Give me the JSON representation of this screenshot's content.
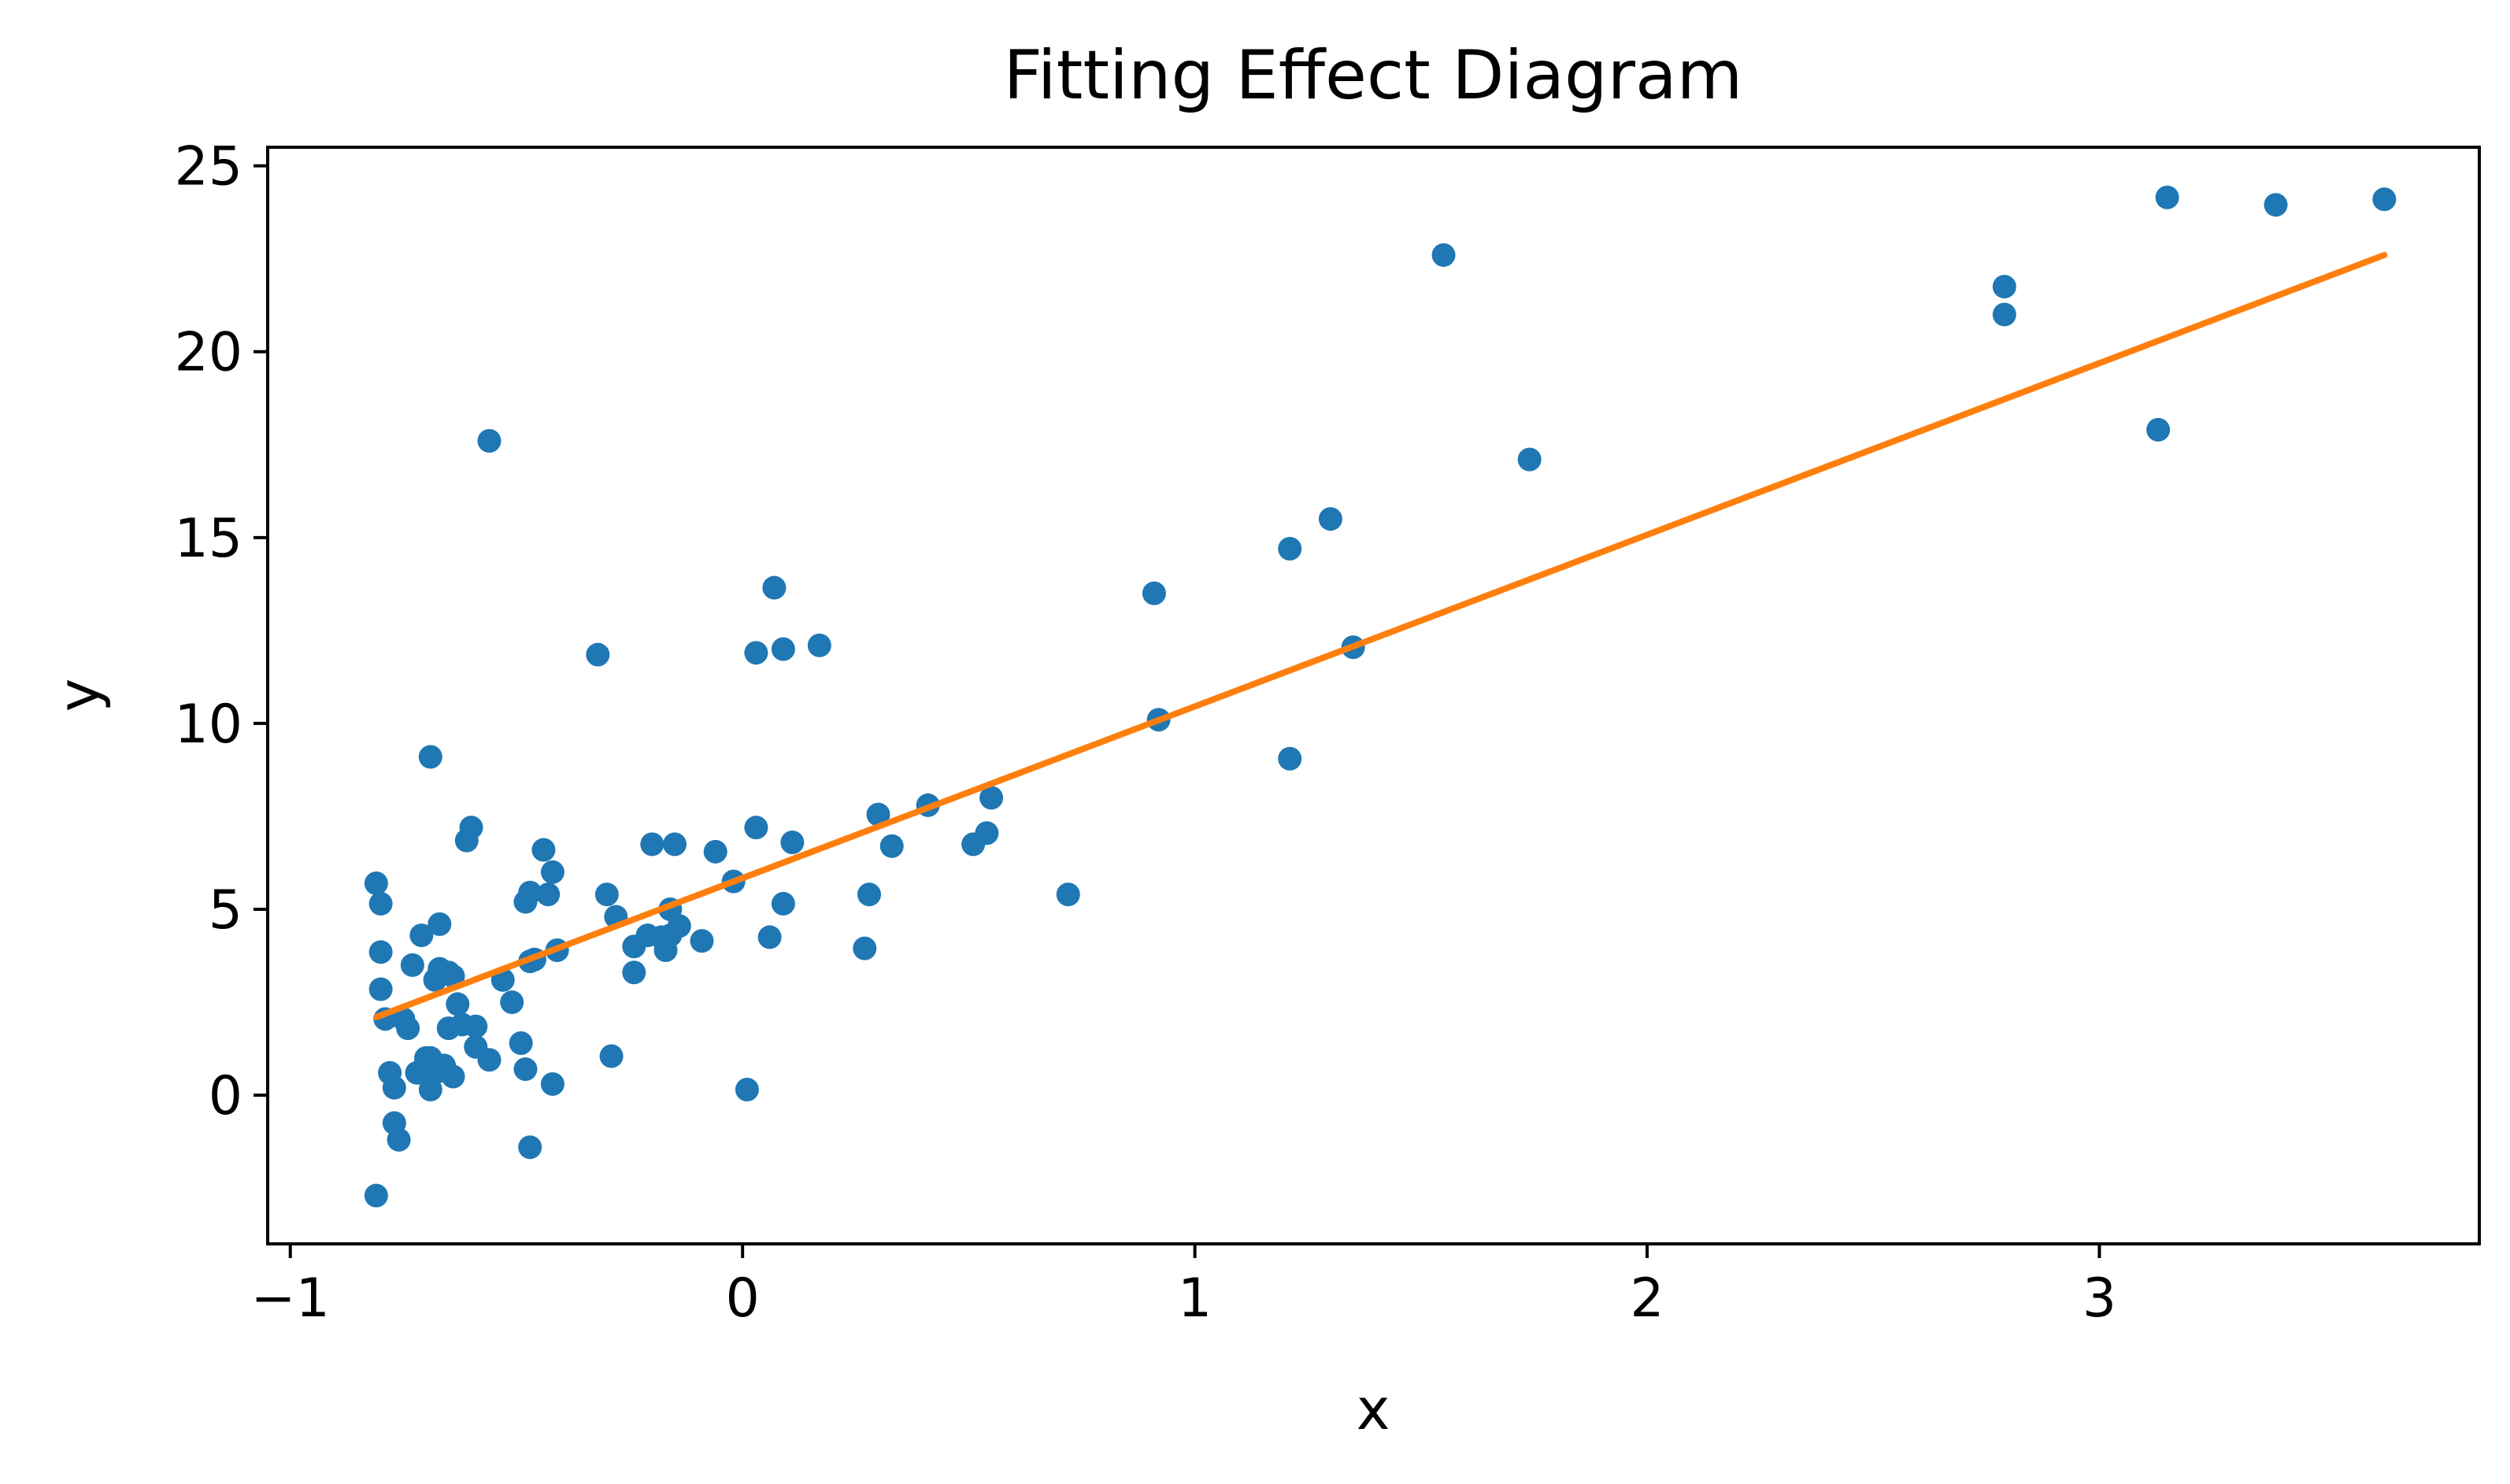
{
  "chart_data": {
    "type": "scatter",
    "title": "Fitting Effect Diagram",
    "xlabel": "x",
    "ylabel": "y",
    "xlim": [
      -1.05,
      3.84
    ],
    "ylim": [
      -4,
      25.5
    ],
    "x_ticks": [
      -1,
      0,
      1,
      2,
      3
    ],
    "x_tick_labels": [
      "−1",
      "0",
      "1",
      "2",
      "3"
    ],
    "y_ticks": [
      0,
      5,
      10,
      15,
      20,
      25
    ],
    "y_tick_labels": [
      "0",
      "5",
      "10",
      "15",
      "20",
      "25"
    ],
    "grid": false,
    "legend": "none",
    "colors": {
      "points": "#1f77b4",
      "fit_line": "#ff7f0e"
    },
    "series": [
      {
        "kind": "points",
        "x": [
          -0.81,
          -0.81,
          -0.8,
          -0.8,
          -0.8,
          -0.79,
          -0.78,
          -0.77,
          -0.77,
          -0.76,
          -0.75,
          -0.74,
          -0.73,
          -0.72,
          -0.71,
          -0.7,
          -0.7,
          -0.69,
          -0.69,
          -0.69,
          -0.68,
          -0.68,
          -0.67,
          -0.67,
          -0.66,
          -0.65,
          -0.65,
          -0.64,
          -0.64,
          -0.63,
          -0.62,
          -0.61,
          -0.6,
          -0.59,
          -0.59,
          -0.56,
          -0.56,
          -0.53,
          -0.51,
          -0.49,
          -0.48,
          -0.48,
          -0.47,
          -0.47,
          -0.47,
          -0.46,
          -0.44,
          -0.43,
          -0.42,
          -0.42,
          -0.41,
          -0.32,
          -0.3,
          -0.29,
          -0.28,
          -0.24,
          -0.24,
          -0.21,
          -0.2,
          -0.18,
          -0.17,
          -0.16,
          -0.16,
          -0.15,
          -0.14,
          -0.09,
          -0.06,
          -0.02,
          0.01,
          0.03,
          0.03,
          0.06,
          0.07,
          0.09,
          0.09,
          0.11,
          0.17,
          0.27,
          0.28,
          0.3,
          0.33,
          0.41,
          0.51,
          0.54,
          0.55,
          0.72,
          0.91,
          0.92,
          1.21,
          1.21,
          1.3,
          1.35,
          1.55,
          1.74,
          2.79,
          2.79,
          3.13,
          3.15,
          3.39,
          3.63
        ],
        "y": [
          -2.7,
          5.7,
          5.15,
          3.85,
          2.85,
          2.05,
          0.6,
          -0.75,
          0.2,
          -1.2,
          2.05,
          1.8,
          3.5,
          0.6,
          4.3,
          0.9,
          1.0,
          0.15,
          9.1,
          1.0,
          3.1,
          0.6,
          3.4,
          4.6,
          0.8,
          1.8,
          3.3,
          3.2,
          0.5,
          2.45,
          1.9,
          6.85,
          7.2,
          1.85,
          1.3,
          0.95,
          17.6,
          3.1,
          2.5,
          1.4,
          5.2,
          0.7,
          -1.4,
          5.45,
          3.6,
          3.65,
          6.6,
          5.4,
          0.3,
          6.0,
          3.9,
          11.85,
          5.4,
          1.05,
          4.8,
          3.3,
          4.0,
          4.3,
          6.75,
          4.25,
          3.9,
          5.0,
          4.3,
          6.75,
          4.55,
          4.15,
          6.55,
          5.75,
          0.15,
          11.9,
          7.2,
          4.25,
          13.65,
          12.0,
          5.15,
          6.8,
          12.1,
          3.95,
          5.4,
          7.55,
          6.7,
          7.8,
          6.75,
          7.05,
          8.0,
          5.4,
          13.5,
          10.1,
          14.7,
          9.05,
          15.5,
          12.05,
          22.6,
          17.1,
          21.75,
          21.0,
          17.9,
          24.15,
          23.95,
          24.1
        ]
      },
      {
        "kind": "line",
        "x": [
          -0.81,
          3.63
        ],
        "y": [
          2.1,
          22.6
        ]
      }
    ]
  }
}
